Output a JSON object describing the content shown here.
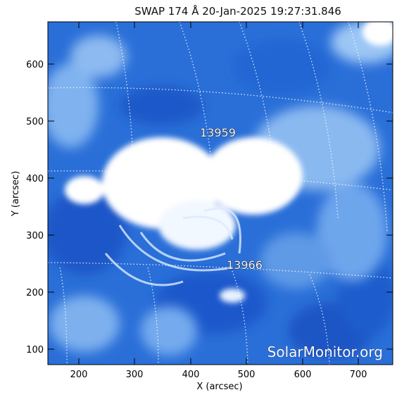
{
  "title": "SWAP 174 Å 20-Jan-2025 19:27:31.846",
  "xlabel": "X (arcsec)",
  "ylabel": "Y (arcsec)",
  "x_ticks": [
    "200",
    "300",
    "400",
    "500",
    "600",
    "700"
  ],
  "y_ticks": [
    "100",
    "200",
    "300",
    "400",
    "500",
    "600"
  ],
  "regions": [
    "13959",
    "13966"
  ],
  "watermark": "SolarMonitor.org",
  "colors": {
    "deep_blue": "#1a56c8",
    "mid_blue": "#3f86e8",
    "light_blue": "#9cc6f5",
    "bright": "#ffffff"
  }
}
